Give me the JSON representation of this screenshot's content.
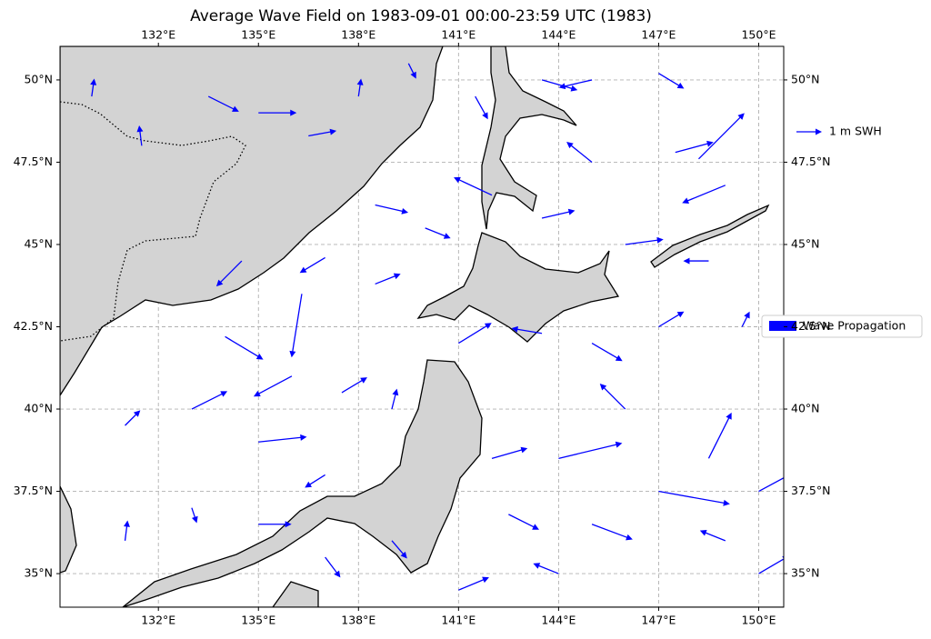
{
  "title": "Average Wave Field on 1983-09-01 00:00-23:59 UTC (1983)",
  "legend": {
    "items": [
      "1 m SWH",
      "Wave Propagation"
    ]
  },
  "map": {
    "xlim": [
      129.05,
      150.75
    ],
    "ylim": [
      33.98,
      51.02
    ],
    "xticks": [
      {
        "value": 132,
        "label": "132°E"
      },
      {
        "value": 135,
        "label": "135°E"
      },
      {
        "value": 138,
        "label": "138°E"
      },
      {
        "value": 141,
        "label": "141°E"
      },
      {
        "value": 144,
        "label": "144°E"
      },
      {
        "value": 147,
        "label": "147°E"
      },
      {
        "value": 150,
        "label": "150°E"
      }
    ],
    "yticks": [
      {
        "value": 35,
        "label": "35°N"
      },
      {
        "value": 37.5,
        "label": "37.5°N"
      },
      {
        "value": 40,
        "label": "40°N"
      },
      {
        "value": 42.5,
        "label": "42.5°N"
      },
      {
        "value": 45,
        "label": "45°N"
      },
      {
        "value": 47.5,
        "label": "47.5°N"
      },
      {
        "value": 50,
        "label": "50°N"
      }
    ],
    "grid": true,
    "arrow_color": "#0000ff",
    "arrows": {
      "lon": [
        130.0,
        131.5,
        133.5,
        135.0,
        136.5,
        138.0,
        139.5,
        141.5,
        143.5,
        145.0,
        147.0,
        148.2,
        145.0,
        147.5,
        149.0,
        138.5,
        140.0,
        142.0,
        143.5,
        146.0,
        148.5,
        137.0,
        134.5,
        136.3,
        138.5,
        141.0,
        143.5,
        145.0,
        147.0,
        149.5,
        134.0,
        136.0,
        137.5,
        139.0,
        133.0,
        131.0,
        135.0,
        137.0,
        142.0,
        144.0,
        146.0,
        148.5,
        150.0,
        142.5,
        145.0,
        147.0,
        149.0,
        141.0,
        144.0,
        150.0,
        131.0,
        133.0,
        135.0,
        137.0,
        139.0
      ],
      "lat": [
        49.5,
        48.0,
        49.5,
        49.0,
        48.3,
        49.5,
        50.5,
        49.5,
        50.0,
        50.0,
        50.2,
        47.6,
        47.5,
        47.8,
        46.8,
        46.2,
        45.5,
        46.5,
        45.8,
        45.0,
        44.5,
        44.6,
        44.5,
        43.5,
        43.8,
        42.0,
        42.3,
        42.0,
        42.5,
        42.5,
        42.2,
        41.0,
        40.5,
        40.0,
        40.0,
        39.5,
        39.0,
        38.0,
        38.5,
        38.5,
        40.0,
        38.5,
        37.5,
        36.8,
        36.5,
        37.5,
        36.0,
        34.5,
        35.0,
        35.0,
        36.0,
        37.0,
        36.5,
        35.5,
        36.0
      ],
      "u": [
        0.1,
        -0.1,
        1.2,
        1.5,
        1.1,
        0.1,
        0.3,
        0.5,
        1.4,
        -1.3,
        1.0,
        1.8,
        -1.0,
        1.5,
        -1.7,
        1.3,
        1.0,
        -1.5,
        1.3,
        1.5,
        -1.0,
        -1.0,
        -1.0,
        -0.4,
        1.0,
        1.3,
        -1.2,
        1.2,
        1.0,
        0.3,
        1.5,
        -1.5,
        1.0,
        0.2,
        1.4,
        0.6,
        1.9,
        -0.8,
        1.4,
        2.5,
        -1.0,
        0.9,
        1.3,
        1.2,
        1.6,
        2.8,
        -1.0,
        1.2,
        -1.0,
        1.2,
        0.1,
        0.2,
        1.3,
        0.6,
        0.6
      ],
      "v": [
        0.7,
        0.8,
        -0.6,
        0.0,
        0.2,
        0.7,
        -0.6,
        -0.9,
        -0.4,
        -0.3,
        -0.6,
        1.8,
        0.8,
        0.4,
        -0.7,
        -0.3,
        -0.4,
        0.7,
        0.3,
        0.2,
        0.0,
        -0.6,
        -1.0,
        -2.5,
        0.4,
        0.8,
        0.2,
        -0.7,
        0.6,
        0.6,
        -0.9,
        -0.8,
        0.6,
        0.8,
        0.7,
        0.6,
        0.2,
        -0.5,
        0.4,
        0.6,
        1.0,
        1.8,
        0.7,
        -0.6,
        -0.6,
        -0.5,
        0.4,
        0.5,
        0.4,
        0.7,
        0.8,
        -0.6,
        0.0,
        -0.8,
        -0.7
      ]
    }
  }
}
